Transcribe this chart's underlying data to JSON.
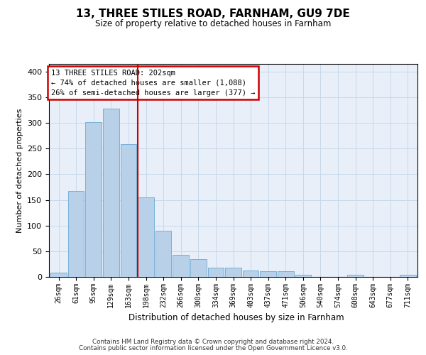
{
  "title": "13, THREE STILES ROAD, FARNHAM, GU9 7DE",
  "subtitle": "Size of property relative to detached houses in Farnham",
  "xlabel": "Distribution of detached houses by size in Farnham",
  "ylabel": "Number of detached properties",
  "categories": [
    "26sqm",
    "61sqm",
    "95sqm",
    "129sqm",
    "163sqm",
    "198sqm",
    "232sqm",
    "266sqm",
    "300sqm",
    "334sqm",
    "369sqm",
    "403sqm",
    "437sqm",
    "471sqm",
    "506sqm",
    "540sqm",
    "574sqm",
    "608sqm",
    "643sqm",
    "677sqm",
    "711sqm"
  ],
  "values": [
    8,
    168,
    302,
    328,
    258,
    155,
    90,
    43,
    35,
    18,
    18,
    12,
    11,
    11,
    4,
    0,
    0,
    4,
    0,
    0,
    4
  ],
  "bar_color": "#b8d0e8",
  "bar_edge_color": "#6aaad4",
  "vline_x": 5.0,
  "vline_color": "#cc0000",
  "annotation_text_line1": "13 THREE STILES ROAD: 202sqm",
  "annotation_text_line2": "← 74% of detached houses are smaller (1,088)",
  "annotation_text_line3": "26% of semi-detached houses are larger (377) →",
  "annotation_box_facecolor": "white",
  "annotation_box_edgecolor": "#cc0000",
  "grid_color": "#c8d8ea",
  "bg_color": "#e8eff8",
  "ylim_max": 415,
  "yticks": [
    0,
    50,
    100,
    150,
    200,
    250,
    300,
    350,
    400
  ],
  "footer_line1": "Contains HM Land Registry data © Crown copyright and database right 2024.",
  "footer_line2": "Contains public sector information licensed under the Open Government Licence v3.0."
}
